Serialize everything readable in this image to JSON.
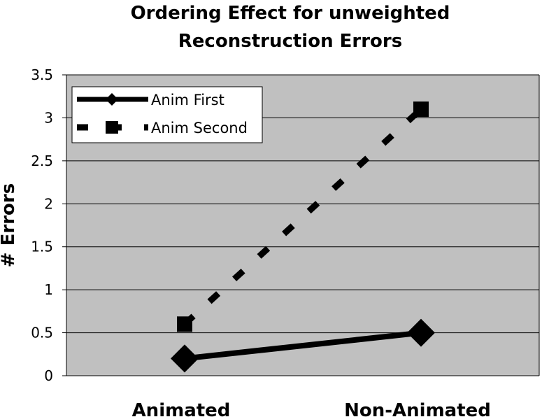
{
  "chart_data": {
    "type": "line",
    "title_lines": [
      "Ordering Effect for unweighted",
      "Reconstruction Errors"
    ],
    "xlabel": "",
    "ylabel": "# Errors",
    "categories": [
      "Animated",
      "Non-Animated"
    ],
    "ylim": [
      0,
      3.5
    ],
    "yticks": [
      "0",
      "0.5",
      "1",
      "1.5",
      "2",
      "2.5",
      "3",
      "3.5"
    ],
    "grid": true,
    "legend_position": "top-left",
    "colors": {
      "plot_background": "#c0c0c0",
      "series": "#000000"
    },
    "series": [
      {
        "name": "Anim First",
        "values": [
          0.2,
          0.5
        ],
        "line_style": "solid",
        "marker": "diamond"
      },
      {
        "name": "Anim Second",
        "values": [
          0.6,
          3.1
        ],
        "line_style": "dashed",
        "marker": "square"
      }
    ]
  }
}
